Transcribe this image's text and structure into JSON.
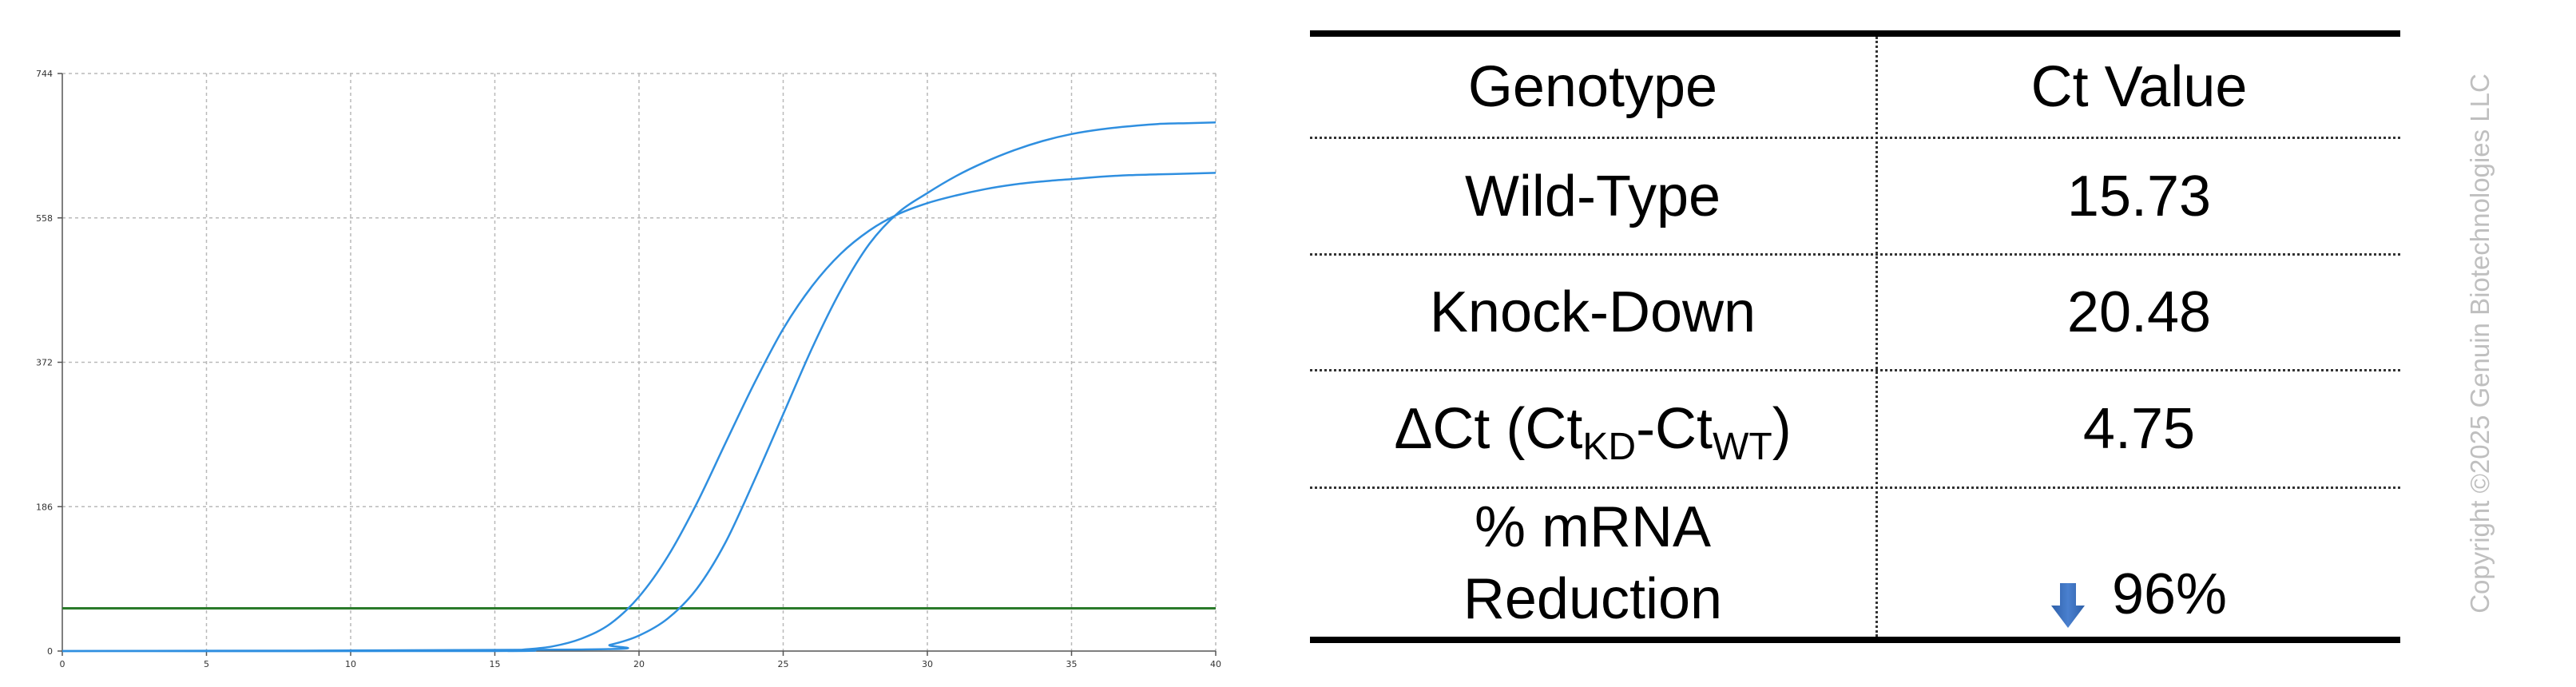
{
  "chart_data": {
    "type": "line",
    "title": "",
    "xlabel": "",
    "ylabel": "",
    "xlim": [
      0,
      40
    ],
    "ylim": [
      0,
      744
    ],
    "x_ticks": [
      0,
      5,
      10,
      15,
      20,
      25,
      30,
      35,
      40
    ],
    "y_ticks": [
      0,
      186,
      372,
      558,
      744
    ],
    "grid": true,
    "threshold": 55,
    "colors": {
      "series": "#2f8fe0",
      "threshold": "#2a7a2a",
      "grid": "#b9b9b9",
      "axis": "#555555"
    },
    "series": [
      {
        "x": [
          0,
          15,
          16,
          17,
          18,
          19,
          20,
          21,
          22,
          23,
          24,
          25,
          26,
          27,
          28,
          29,
          30,
          31,
          32,
          33,
          34,
          35,
          36,
          37,
          38,
          39,
          40
        ],
        "values": [
          0,
          0,
          2,
          6,
          16,
          35,
          70,
          122,
          190,
          268,
          345,
          415,
          470,
          512,
          542,
          563,
          577,
          587,
          595,
          601,
          605,
          608,
          611,
          613,
          614,
          615,
          616
        ]
      },
      {
        "x": [
          0,
          18,
          19,
          20,
          21,
          22,
          23,
          24,
          25,
          26,
          27,
          28,
          29,
          30,
          31,
          32,
          33,
          34,
          35,
          36,
          37,
          38,
          39,
          40
        ],
        "values": [
          0,
          2,
          8,
          20,
          42,
          80,
          140,
          220,
          305,
          390,
          465,
          525,
          565,
          590,
          612,
          630,
          645,
          657,
          666,
          672,
          676,
          679,
          680,
          681
        ]
      }
    ]
  },
  "table": {
    "headers": [
      "Genotype",
      "Ct Value"
    ],
    "rows": [
      {
        "label": "Wild-Type",
        "value": "15.73"
      },
      {
        "label": "Knock-Down",
        "value": "20.48"
      },
      {
        "label_main": "ΔCt (Ct",
        "label_sub1": "KD",
        "label_mid": "-Ct",
        "label_sub2": "WT",
        "label_end": ")",
        "value": "4.75"
      },
      {
        "label_line1": "% mRNA",
        "label_line2": "Reduction",
        "value": "96%"
      }
    ],
    "arrow_icon": "down-arrow-icon"
  },
  "copyright": "Copyright ©2025 Genuin Biotechnologies LLC"
}
